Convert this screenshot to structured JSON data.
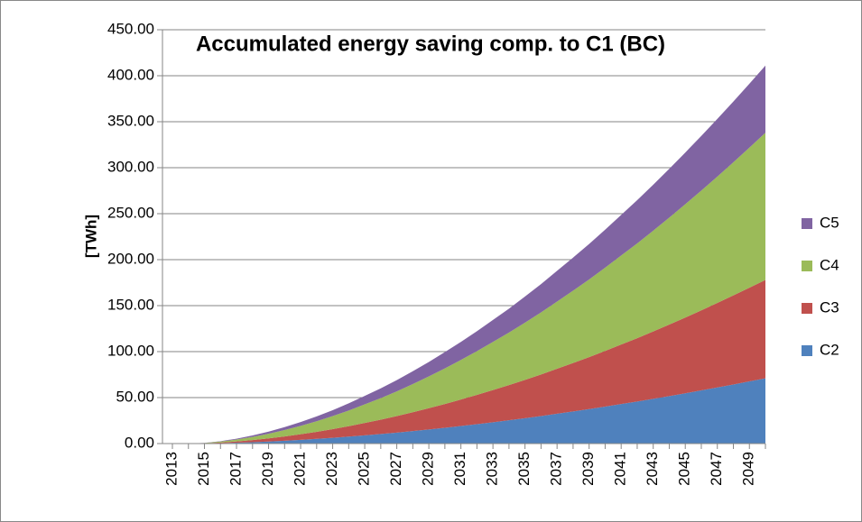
{
  "chart_data": {
    "type": "stacked-area",
    "title": "Accumulated energy saving comp. to C1 (BC)",
    "y_label": "[TWh]",
    "categories": [
      "2013",
      null,
      "2015",
      null,
      "2017",
      null,
      "2019",
      null,
      "2021",
      null,
      "2023",
      null,
      "2025",
      null,
      "2027",
      null,
      "2029",
      null,
      "2031",
      null,
      "2033",
      null,
      "2035",
      null,
      "2037",
      null,
      "2039",
      null,
      "2041",
      null,
      "2043",
      null,
      "2045",
      null,
      "2047",
      null,
      "2049",
      null
    ],
    "series": [
      {
        "name": "C2",
        "color": "#4f81bd",
        "values": [
          0,
          0,
          0.13,
          0.45,
          0.92,
          1.52,
          2.24,
          3.09,
          4.04,
          5.1,
          6.28,
          7.55,
          8.95,
          10.38,
          11.93,
          13.6,
          15.34,
          17.18,
          19.1,
          21.11,
          23.22,
          25.35,
          27.62,
          29.96,
          32.45,
          34.93,
          37.49,
          40.19,
          42.96,
          45.72,
          48.64,
          51.62,
          54.67,
          57.79,
          60.99,
          64.26,
          67.59,
          71.0
        ]
      },
      {
        "name": "C3",
        "color": "#c0504d",
        "values": [
          0,
          0,
          0.2,
          0.68,
          1.38,
          2.29,
          3.38,
          4.65,
          6.09,
          7.69,
          9.46,
          11.37,
          13.48,
          15.64,
          17.98,
          20.49,
          23.11,
          25.89,
          28.78,
          31.81,
          34.99,
          38.2,
          41.62,
          45.15,
          48.9,
          52.64,
          56.5,
          60.56,
          64.74,
          68.91,
          73.3,
          77.79,
          82.39,
          87.1,
          91.91,
          96.84,
          101.86,
          107.0
        ]
      },
      {
        "name": "C4",
        "color": "#9bbb59",
        "values": [
          0,
          0,
          0.3,
          1.02,
          2.06,
          3.42,
          5.06,
          6.96,
          9.1,
          11.5,
          14.14,
          17.01,
          20.16,
          23.39,
          26.88,
          30.64,
          34.56,
          38.72,
          43.04,
          47.57,
          52.32,
          57.12,
          62.24,
          67.52,
          73.12,
          78.72,
          84.48,
          90.56,
          96.8,
          103.04,
          109.6,
          116.32,
          123.2,
          130.24,
          137.44,
          144.8,
          152.32,
          160.0
        ]
      },
      {
        "name": "C5",
        "color": "#8064a2",
        "values": [
          0,
          0,
          0.14,
          0.46,
          0.94,
          1.56,
          2.31,
          3.18,
          4.15,
          5.25,
          6.45,
          7.76,
          9.2,
          10.67,
          12.26,
          13.98,
          15.77,
          17.67,
          19.64,
          21.7,
          23.87,
          26.06,
          28.4,
          30.81,
          33.36,
          35.92,
          38.54,
          41.32,
          44.17,
          47.01,
          50.01,
          53.07,
          56.21,
          59.42,
          62.71,
          66.07,
          69.5,
          73.0
        ]
      }
    ],
    "ylim": [
      0,
      450
    ],
    "yticks": [
      {
        "value": 0,
        "label": "0.00"
      },
      {
        "value": 50,
        "label": "50.00"
      },
      {
        "value": 100,
        "label": "100.00"
      },
      {
        "value": 150,
        "label": "150.00"
      },
      {
        "value": 200,
        "label": "200.00"
      },
      {
        "value": 250,
        "label": "250.00"
      },
      {
        "value": 300,
        "label": "300.00"
      },
      {
        "value": 350,
        "label": "350.00"
      },
      {
        "value": 400,
        "label": "400.00"
      },
      {
        "value": 450,
        "label": "450.00"
      }
    ],
    "grid": true,
    "legend": "right"
  }
}
